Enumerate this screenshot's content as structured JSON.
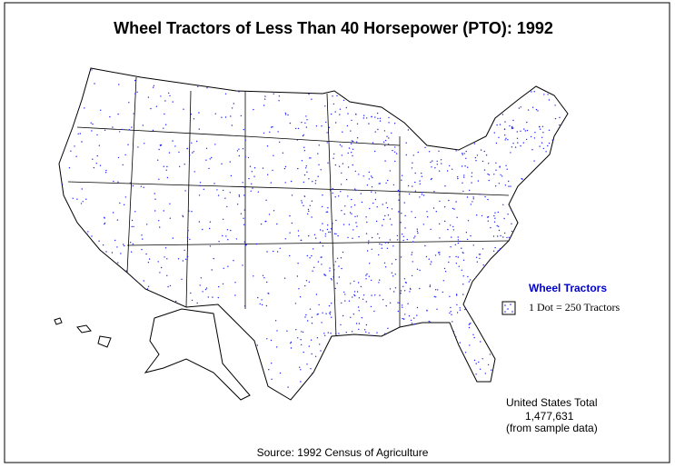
{
  "title": "Wheel Tractors of Less Than 40 Horsepower (PTO):  1992",
  "legend": {
    "title": "Wheel Tractors",
    "label": "1 Dot = 250 Tractors"
  },
  "total": {
    "line1": "United States Total",
    "line2": "1,477,631",
    "line3": "(from sample data)"
  },
  "source": "Source:  1992 Census of Agriculture"
}
